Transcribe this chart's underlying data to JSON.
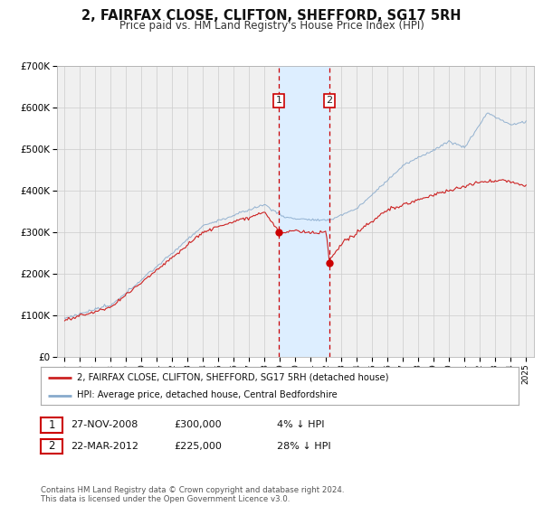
{
  "title": "2, FAIRFAX CLOSE, CLIFTON, SHEFFORD, SG17 5RH",
  "subtitle": "Price paid vs. HM Land Registry's House Price Index (HPI)",
  "title_fontsize": 10.5,
  "subtitle_fontsize": 8.5,
  "legend_label_red": "2, FAIRFAX CLOSE, CLIFTON, SHEFFORD, SG17 5RH (detached house)",
  "legend_label_blue": "HPI: Average price, detached house, Central Bedfordshire",
  "transaction1_date": "27-NOV-2008",
  "transaction1_price": "£300,000",
  "transaction1_hpi": "4% ↓ HPI",
  "transaction1_year": 2008.91,
  "transaction1_value": 300000,
  "transaction2_date": "22-MAR-2012",
  "transaction2_price": "£225,000",
  "transaction2_hpi": "28% ↓ HPI",
  "transaction2_year": 2012.22,
  "transaction2_value": 225000,
  "vline1_x": 2008.91,
  "vline2_x": 2012.22,
  "shade_color": "#ddeeff",
  "vline_color": "#cc0000",
  "dot_color": "#cc0000",
  "grid_color": "#cccccc",
  "background_color": "#ffffff",
  "plot_bg_color": "#f0f0f0",
  "red_line_color": "#cc2222",
  "blue_line_color": "#88aacc",
  "ylim": [
    0,
    700000
  ],
  "yticks": [
    0,
    100000,
    200000,
    300000,
    400000,
    500000,
    600000,
    700000
  ],
  "ytick_labels": [
    "£0",
    "£100K",
    "£200K",
    "£300K",
    "£400K",
    "£500K",
    "£600K",
    "£700K"
  ],
  "xlim_start": 1994.5,
  "xlim_end": 2025.5,
  "footer_text": "Contains HM Land Registry data © Crown copyright and database right 2024.\nThis data is licensed under the Open Government Licence v3.0."
}
